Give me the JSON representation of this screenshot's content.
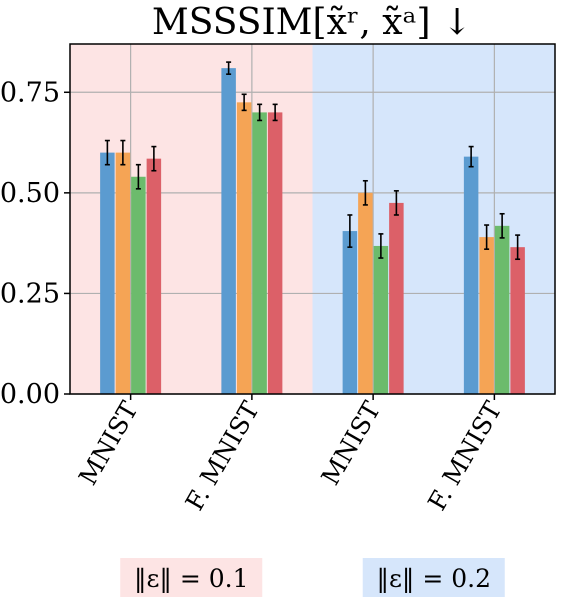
{
  "chart_data": {
    "type": "bar",
    "title": "MSSSIM[x̃ʳ, x̃ᵃ] ↓",
    "xlabel": "",
    "ylabel": "",
    "ylim": [
      0,
      0.87
    ],
    "yticks": [
      "0.00",
      "0.25",
      "0.50",
      "0.75"
    ],
    "ytick_values": [
      0,
      0.25,
      0.5,
      0.75
    ],
    "grid": true,
    "categories": [
      "MNIST",
      "F. MNIST",
      "MNIST",
      "F. MNIST"
    ],
    "groups": [
      {
        "label": "‖ε‖ = 0.1",
        "background": "#fde4e4",
        "categories": [
          0,
          1
        ]
      },
      {
        "label": "‖ε‖ = 0.2",
        "background": "#d6e6fb",
        "categories": [
          2,
          3
        ]
      }
    ],
    "series": [
      {
        "color": "#5b9bd0",
        "values": [
          0.6,
          0.81,
          0.405,
          0.59
        ],
        "errors": [
          0.03,
          0.015,
          0.04,
          0.025
        ]
      },
      {
        "color": "#f5a455",
        "values": [
          0.6,
          0.725,
          0.5,
          0.39
        ],
        "errors": [
          0.03,
          0.02,
          0.03,
          0.03
        ]
      },
      {
        "color": "#6cbb6c",
        "values": [
          0.54,
          0.7,
          0.368,
          0.418
        ],
        "errors": [
          0.03,
          0.02,
          0.03,
          0.03
        ]
      },
      {
        "color": "#dc6068",
        "values": [
          0.585,
          0.7,
          0.475,
          0.365
        ],
        "errors": [
          0.03,
          0.02,
          0.03,
          0.03
        ]
      }
    ]
  }
}
